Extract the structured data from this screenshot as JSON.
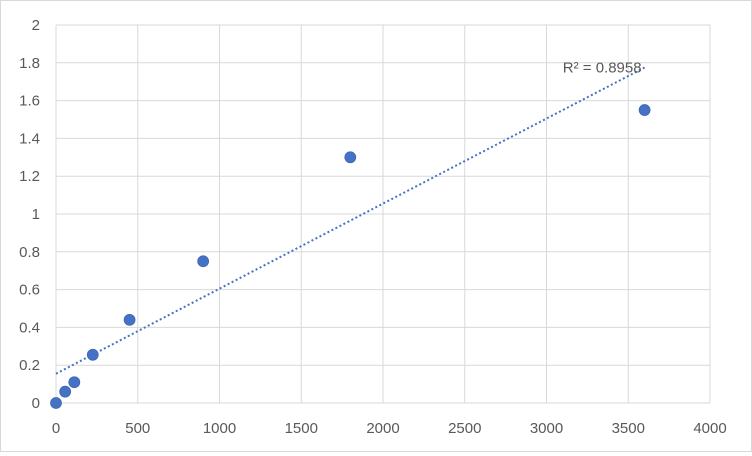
{
  "chart_data": {
    "type": "scatter",
    "title": "",
    "xlabel": "",
    "ylabel": "",
    "xlim": [
      0,
      4000
    ],
    "ylim": [
      0,
      2
    ],
    "x_ticks": [
      0,
      500,
      1000,
      1500,
      2000,
      2500,
      3000,
      3500,
      4000
    ],
    "y_ticks": [
      0,
      0.2,
      0.4,
      0.6,
      0.8,
      1,
      1.2,
      1.4,
      1.6,
      1.8,
      2
    ],
    "x_tick_labels": [
      "0",
      "500",
      "1000",
      "1500",
      "2000",
      "2500",
      "3000",
      "3500",
      "4000"
    ],
    "y_tick_labels": [
      "0",
      "0.2",
      "0.4",
      "0.6",
      "0.8",
      "1",
      "1.2",
      "1.4",
      "1.6",
      "1.8",
      "2"
    ],
    "grid": true,
    "legend": "none",
    "series": [
      {
        "x": [
          0,
          56,
          112,
          225,
          450,
          900,
          1800,
          3600
        ],
        "y": [
          0.0,
          0.06,
          0.11,
          0.255,
          0.44,
          0.75,
          1.3,
          1.55
        ],
        "color": "#4472c4"
      }
    ],
    "trendline": {
      "type": "linear",
      "x_range": [
        0,
        3600
      ],
      "y_range": [
        0.155,
        1.775
      ],
      "color": "#4472c4",
      "style": "dotted",
      "label": "R² = 0.8958"
    }
  }
}
